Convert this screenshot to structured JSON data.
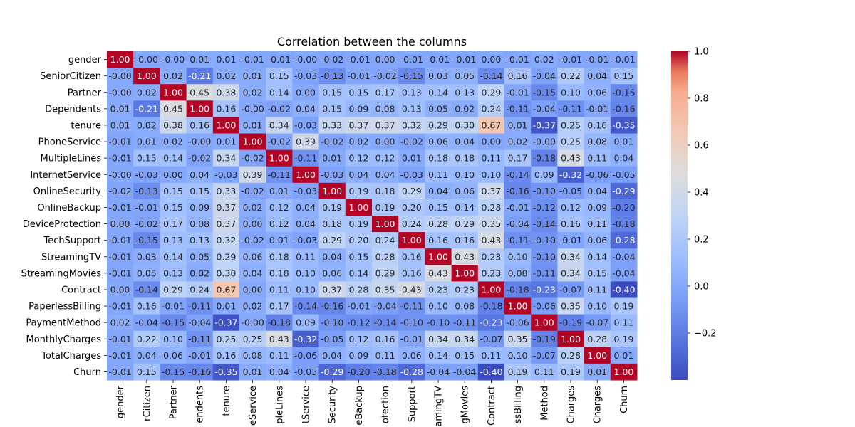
{
  "chart_data": {
    "type": "heatmap",
    "title": "Correlation between the columns",
    "row_labels": [
      "gender",
      "SeniorCitizen",
      "Partner",
      "Dependents",
      "tenure",
      "PhoneService",
      "MultipleLines",
      "InternetService",
      "OnlineSecurity",
      "OnlineBackup",
      "DeviceProtection",
      "TechSupport",
      "StreamingTV",
      "StreamingMovies",
      "Contract",
      "PaperlessBilling",
      "PaymentMethod",
      "MonthlyCharges",
      "TotalCharges",
      "Churn"
    ],
    "col_labels": [
      "gender",
      "SeniorCitizen",
      "Partner",
      "Dependents",
      "tenure",
      "PhoneService",
      "MultipleLines",
      "InternetService",
      "OnlineSecurity",
      "OnlineBackup",
      "DeviceProtection",
      "TechSupport",
      "StreamingTV",
      "StreamingMovies",
      "Contract",
      "PaperlessBilling",
      "PaymentMethod",
      "MonthlyCharges",
      "TotalCharges",
      "Churn"
    ],
    "values": [
      [
        1.0,
        -0.0,
        -0.0,
        0.01,
        0.01,
        -0.01,
        -0.01,
        -0.0,
        -0.02,
        -0.01,
        0.0,
        -0.01,
        -0.01,
        -0.01,
        0.0,
        -0.01,
        0.02,
        -0.01,
        -0.01,
        -0.01
      ],
      [
        -0.0,
        1.0,
        0.02,
        -0.21,
        0.02,
        0.01,
        0.15,
        -0.03,
        -0.13,
        -0.01,
        -0.02,
        -0.15,
        0.03,
        0.05,
        -0.14,
        0.16,
        -0.04,
        0.22,
        0.04,
        0.15
      ],
      [
        -0.0,
        0.02,
        1.0,
        0.45,
        0.38,
        0.02,
        0.14,
        0.0,
        0.15,
        0.15,
        0.17,
        0.13,
        0.14,
        0.13,
        0.29,
        -0.01,
        -0.15,
        0.1,
        0.06,
        -0.15
      ],
      [
        0.01,
        -0.21,
        0.45,
        1.0,
        0.16,
        -0.0,
        -0.02,
        0.04,
        0.15,
        0.09,
        0.08,
        0.13,
        0.05,
        0.02,
        0.24,
        -0.11,
        -0.04,
        -0.11,
        -0.01,
        -0.16
      ],
      [
        0.01,
        0.02,
        0.38,
        0.16,
        1.0,
        0.01,
        0.34,
        -0.03,
        0.33,
        0.37,
        0.37,
        0.32,
        0.29,
        0.3,
        0.67,
        0.01,
        -0.37,
        0.25,
        0.16,
        -0.35
      ],
      [
        -0.01,
        0.01,
        0.02,
        -0.0,
        0.01,
        1.0,
        -0.02,
        0.39,
        -0.02,
        0.02,
        0.0,
        -0.02,
        0.06,
        0.04,
        0.0,
        0.02,
        -0.0,
        0.25,
        0.08,
        0.01
      ],
      [
        -0.01,
        0.15,
        0.14,
        -0.02,
        0.34,
        -0.02,
        1.0,
        -0.11,
        0.01,
        0.12,
        0.12,
        0.01,
        0.18,
        0.18,
        0.11,
        0.17,
        -0.18,
        0.43,
        0.11,
        0.04
      ],
      [
        -0.0,
        -0.03,
        0.0,
        0.04,
        -0.03,
        0.39,
        -0.11,
        1.0,
        -0.03,
        0.04,
        0.04,
        -0.03,
        0.11,
        0.1,
        0.1,
        -0.14,
        0.09,
        -0.32,
        -0.06,
        -0.05
      ],
      [
        -0.02,
        -0.13,
        0.15,
        0.15,
        0.33,
        -0.02,
        0.01,
        -0.03,
        1.0,
        0.19,
        0.18,
        0.29,
        0.04,
        0.06,
        0.37,
        -0.16,
        -0.1,
        -0.05,
        0.04,
        -0.29
      ],
      [
        -0.01,
        -0.01,
        0.15,
        0.09,
        0.37,
        0.02,
        0.12,
        0.04,
        0.19,
        1.0,
        0.19,
        0.2,
        0.15,
        0.14,
        0.28,
        -0.01,
        -0.12,
        0.12,
        0.09,
        -0.2
      ],
      [
        0.0,
        -0.02,
        0.17,
        0.08,
        0.37,
        0.0,
        0.12,
        0.04,
        0.18,
        0.19,
        1.0,
        0.24,
        0.28,
        0.29,
        0.35,
        -0.04,
        -0.14,
        0.16,
        0.11,
        -0.18
      ],
      [
        -0.01,
        -0.15,
        0.13,
        0.13,
        0.32,
        -0.02,
        0.01,
        -0.03,
        0.29,
        0.2,
        0.24,
        1.0,
        0.16,
        0.16,
        0.43,
        -0.11,
        -0.1,
        -0.01,
        0.06,
        -0.28
      ],
      [
        -0.01,
        0.03,
        0.14,
        0.05,
        0.29,
        0.06,
        0.18,
        0.11,
        0.04,
        0.15,
        0.28,
        0.16,
        1.0,
        0.43,
        0.23,
        0.1,
        -0.1,
        0.34,
        0.14,
        -0.04
      ],
      [
        -0.01,
        0.05,
        0.13,
        0.02,
        0.3,
        0.04,
        0.18,
        0.1,
        0.06,
        0.14,
        0.29,
        0.16,
        0.43,
        1.0,
        0.23,
        0.08,
        -0.11,
        0.34,
        0.15,
        -0.04
      ],
      [
        0.0,
        -0.14,
        0.29,
        0.24,
        0.67,
        0.0,
        0.11,
        0.1,
        0.37,
        0.28,
        0.35,
        0.43,
        0.23,
        0.23,
        1.0,
        -0.18,
        -0.23,
        -0.07,
        0.11,
        -0.4
      ],
      [
        -0.01,
        0.16,
        -0.01,
        -0.11,
        0.01,
        0.02,
        0.17,
        -0.14,
        -0.16,
        -0.01,
        -0.04,
        -0.11,
        0.1,
        0.08,
        -0.18,
        1.0,
        -0.06,
        0.35,
        0.1,
        0.19
      ],
      [
        0.02,
        -0.04,
        -0.15,
        -0.04,
        -0.37,
        -0.0,
        -0.18,
        0.09,
        -0.1,
        -0.12,
        -0.14,
        -0.1,
        -0.1,
        -0.11,
        -0.23,
        -0.06,
        1.0,
        -0.19,
        -0.07,
        0.11
      ],
      [
        -0.01,
        0.22,
        0.1,
        -0.11,
        0.25,
        0.25,
        0.43,
        -0.32,
        -0.05,
        0.12,
        0.16,
        -0.01,
        0.34,
        0.34,
        -0.07,
        0.35,
        -0.19,
        1.0,
        0.28,
        0.19
      ],
      [
        -0.01,
        0.04,
        0.06,
        -0.01,
        0.16,
        0.08,
        0.11,
        -0.06,
        0.04,
        0.09,
        0.11,
        0.06,
        0.14,
        0.15,
        0.11,
        0.1,
        -0.07,
        0.28,
        1.0,
        0.01
      ],
      [
        -0.01,
        0.15,
        -0.15,
        -0.16,
        -0.35,
        0.01,
        0.04,
        -0.05,
        -0.29,
        -0.2,
        -0.18,
        -0.28,
        -0.04,
        -0.04,
        -0.4,
        0.19,
        0.11,
        0.19,
        0.01,
        1.0
      ]
    ],
    "value_format": "2 decimals",
    "colormap": "coolwarm",
    "colors": {
      "low": "#3b4cc0",
      "mid": "#dddddd",
      "high": "#b40426"
    },
    "vmin": -0.4,
    "vmax": 1.0,
    "colorbar_ticks": [
      "1.0",
      "0.8",
      "0.6",
      "0.4",
      "0.2",
      "0.0",
      "−0.2"
    ],
    "colorbar_tick_values": [
      1.0,
      0.8,
      0.6,
      0.4,
      0.2,
      0.0,
      -0.2
    ],
    "x_tick_labels_visible": [
      "gender",
      "rCitizen",
      "Partner",
      "endents",
      "tenure",
      "eService",
      "pleLines",
      "tService",
      "Security",
      "eBackup",
      "otection",
      "Support",
      "amingTV",
      "gMovies",
      "Contract",
      "ssBilling",
      "Method",
      "Charges",
      "Charges",
      "Churn"
    ],
    "legend": "colorbar at right",
    "grid": false
  }
}
